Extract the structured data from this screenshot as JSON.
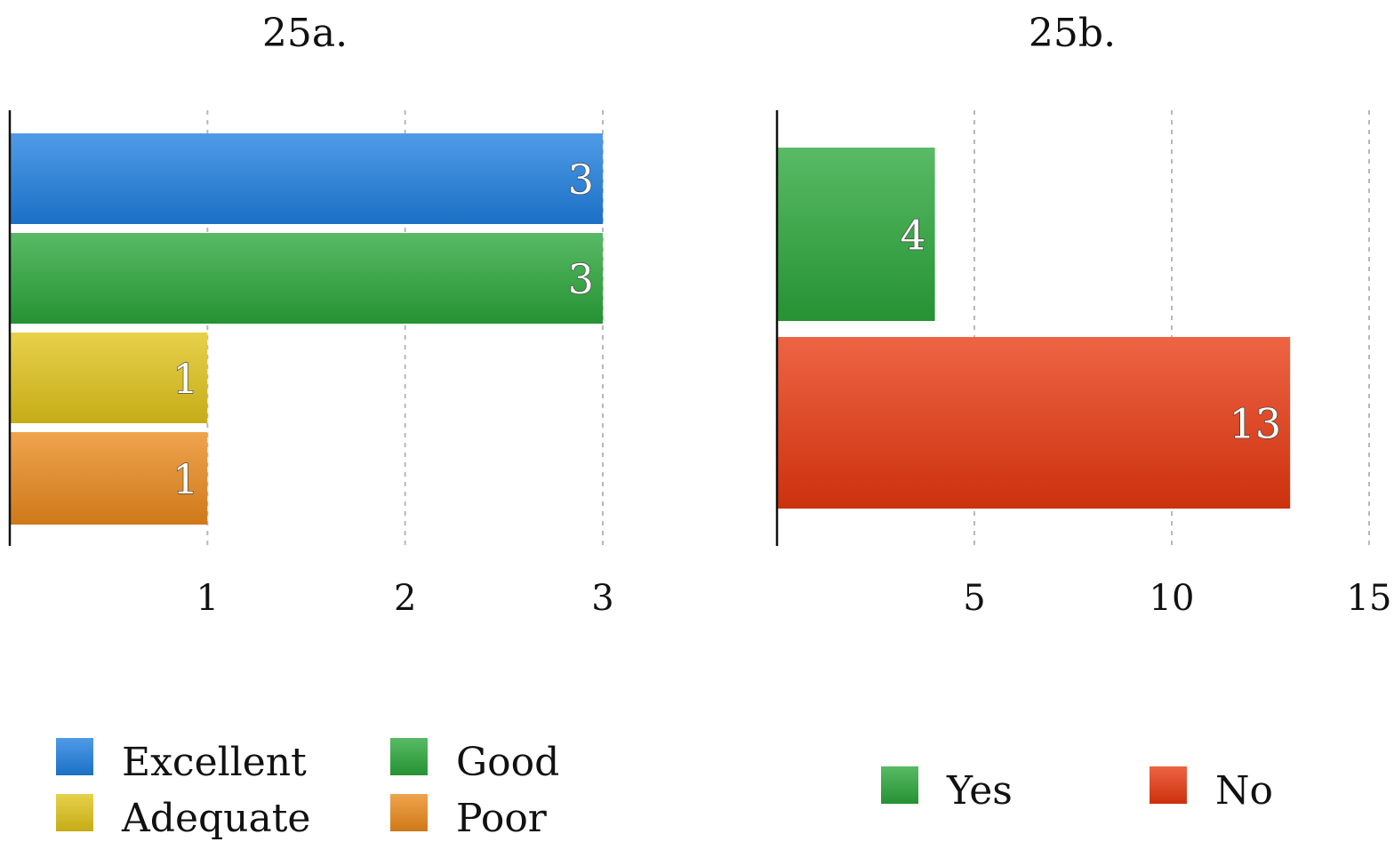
{
  "chart_data": [
    {
      "type": "bar",
      "orientation": "horizontal",
      "title": "25a.",
      "categories": [
        "Excellent",
        "Good",
        "Adequate",
        "Poor"
      ],
      "values": [
        3,
        3,
        1,
        1
      ],
      "colors": [
        "#1f7fe0",
        "#2aa63a",
        "#e0c41a",
        "#ea8a1c"
      ],
      "xlim": [
        0,
        3
      ],
      "xticks": [
        1,
        2,
        3
      ],
      "grid": true,
      "legend": "bottom"
    },
    {
      "type": "bar",
      "orientation": "horizontal",
      "title": "25b.",
      "categories": [
        "Yes",
        "No"
      ],
      "values": [
        4,
        13
      ],
      "colors": [
        "#2aa63a",
        "#e8380f"
      ],
      "xlim": [
        0,
        15
      ],
      "xticks": [
        5,
        10,
        15
      ],
      "grid": true,
      "legend": "bottom"
    }
  ]
}
